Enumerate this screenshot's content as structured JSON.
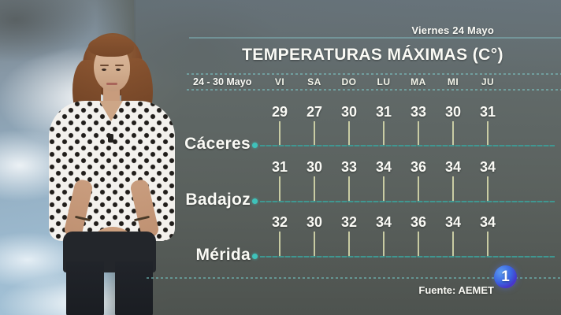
{
  "header": {
    "broadcast_date": "Viernes 24 Mayo",
    "title": "TEMPERATURAS MÁXIMAS (C°)",
    "week_range": "24 - 30 Mayo"
  },
  "footer": {
    "source": "Fuente: AEMET",
    "channel_logo": "1"
  },
  "colors": {
    "accent_teal": "#3fc2ba",
    "tick": "#d8dbad",
    "panel_gray": "#5c6360",
    "logo_blue": "#3b66e2",
    "text": "#fafaf5"
  },
  "chart_data": {
    "type": "table",
    "title": "TEMPERATURAS MÁXIMAS (C°)",
    "subtitle": "24 - 30 Mayo",
    "date_shown": "Viernes 24 Mayo",
    "columns": [
      "VI",
      "SA",
      "DO",
      "LU",
      "MA",
      "MI",
      "JU"
    ],
    "rows": [
      {
        "label": "Cáceres",
        "values": [
          29,
          27,
          30,
          31,
          33,
          30,
          31
        ]
      },
      {
        "label": "Badajoz",
        "values": [
          31,
          30,
          33,
          34,
          36,
          34,
          34
        ]
      },
      {
        "label": "Mérida",
        "values": [
          32,
          30,
          32,
          34,
          36,
          34,
          34
        ]
      }
    ],
    "units": "°C",
    "source": "Fuente: AEMET",
    "legend_position": "none",
    "grid": "row-lines"
  }
}
